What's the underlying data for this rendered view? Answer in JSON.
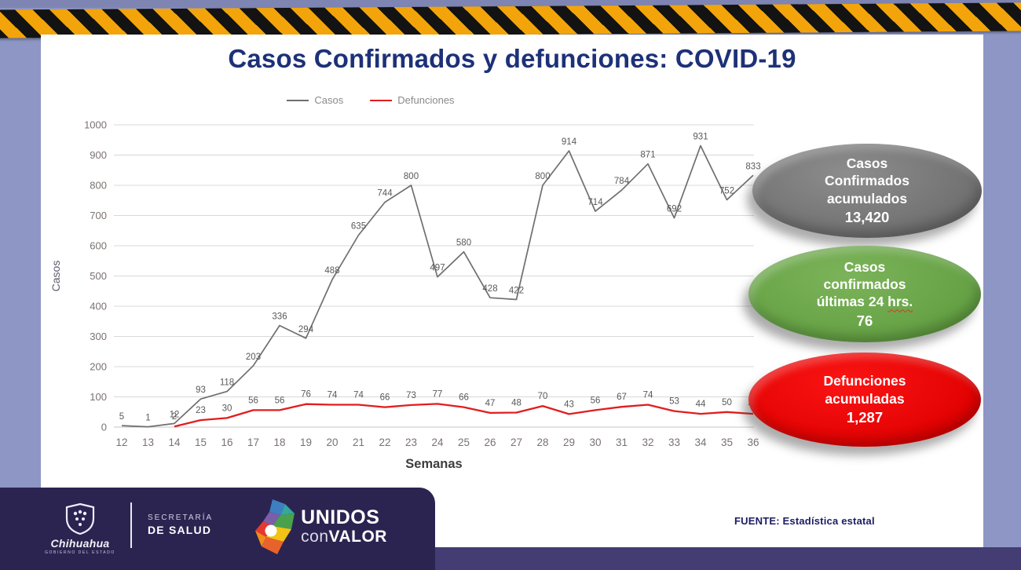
{
  "title": "Casos Confirmados y defunciones: COVID-19",
  "legend": {
    "items": [
      {
        "label": "Casos",
        "color": "#6f6f6f"
      },
      {
        "label": "Defunciones",
        "color": "#e11d1d"
      }
    ]
  },
  "chart_data": {
    "type": "line",
    "x": [
      12,
      13,
      14,
      15,
      16,
      17,
      18,
      19,
      20,
      21,
      22,
      23,
      24,
      25,
      26,
      27,
      28,
      29,
      30,
      31,
      32,
      33,
      34,
      35,
      36
    ],
    "xlabel": "Semanas",
    "ylabel": "Casos",
    "ylim": [
      0,
      1000
    ],
    "ytick_step": 100,
    "grid": true,
    "legend_position": "top",
    "series": [
      {
        "name": "Casos",
        "color": "#6f6f6f",
        "values": [
          5,
          1,
          12,
          93,
          118,
          203,
          336,
          294,
          488,
          635,
          744,
          800,
          497,
          580,
          428,
          422,
          800,
          914,
          714,
          784,
          871,
          692,
          931,
          752,
          833
        ]
      },
      {
        "name": "Defunciones",
        "color": "#e11d1d",
        "values": [
          null,
          null,
          2,
          23,
          30,
          56,
          56,
          76,
          74,
          74,
          66,
          73,
          77,
          66,
          47,
          48,
          70,
          43,
          56,
          67,
          74,
          53,
          44,
          50,
          44
        ]
      }
    ]
  },
  "badges": [
    {
      "name": "casos-confirmados-acumulados",
      "color_inner": "#8d8d8d",
      "color_outer": "#6e6e6e",
      "lines": [
        "Casos",
        "Confirmados",
        "acumulados"
      ],
      "value": "13,420",
      "wavy_word": ""
    },
    {
      "name": "casos-confirmados-24hrs",
      "color_inner": "#7cb35a",
      "color_outer": "#63a042",
      "lines": [
        "Casos",
        "confirmados",
        "últimas  24 hrs."
      ],
      "value": "76",
      "wavy_word": "hrs."
    },
    {
      "name": "defunciones-acumuladas",
      "color_inner": "#fb1414",
      "color_outer": "#e00000",
      "lines": [
        "Defunciones",
        "acumuladas"
      ],
      "value": "1,287",
      "wavy_word": ""
    }
  ],
  "footer": {
    "gov_name": "Chihuahua",
    "gov_sub": "GOBIERNO DEL ESTADO",
    "secretaria_line1": "SECRETARÍA",
    "secretaria_line2": "DE SALUD",
    "unidos_line1": "UNIDOS",
    "unidos_con": "con",
    "unidos_valor": "VALOR",
    "fuente": "FUENTE: Estadística estatal"
  },
  "colors": {
    "background": "#8e96c5",
    "hazard_yellow": "#f2a40a",
    "hazard_black": "#131313",
    "slide": "#ffffff",
    "title": "#1d3178",
    "gridline": "#d8d8d8",
    "tick_text": "#7a7270",
    "data_label": "#595959",
    "footer_bar": "#2b2451",
    "footer_strip": "#433d73"
  }
}
